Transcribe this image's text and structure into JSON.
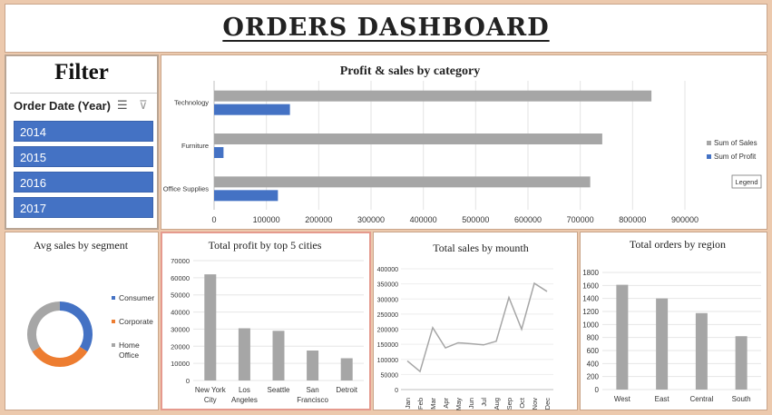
{
  "dashboard": {
    "title": "ORDERS DASHBOARD"
  },
  "filter": {
    "heading": "Filter",
    "slicer_title": "Order Date (Year)",
    "items": [
      "2014",
      "2015",
      "2016",
      "2017"
    ],
    "icons": [
      "multi-select-icon",
      "clear-filter-icon"
    ]
  },
  "colors": {
    "gray": "#a6a6a6",
    "blue": "#4472c4",
    "orange": "#ed7d31",
    "frame": "#ecc9ad"
  },
  "chart_data": [
    {
      "id": "category",
      "type": "bar",
      "orientation": "horizontal",
      "title": "Profit & sales by category",
      "categories": [
        "Technology",
        "Furniture",
        "Office Supplies"
      ],
      "series": [
        {
          "name": "Sum of Sales",
          "color": "#a6a6a6",
          "values": [
            836000,
            742000,
            719000
          ]
        },
        {
          "name": "Sum of Profit",
          "color": "#4472c4",
          "values": [
            145000,
            18000,
            122000
          ]
        }
      ],
      "xlim": [
        0,
        900000
      ],
      "xticks": [
        "0",
        "100000",
        "200000",
        "300000",
        "400000",
        "500000",
        "600000",
        "700000",
        "800000",
        "900000"
      ],
      "legend": "right",
      "legend_tooltip": "Legend"
    },
    {
      "id": "segment",
      "type": "pie",
      "style": "doughnut",
      "title": "Avg sales by segment",
      "labels": [
        "Consumer",
        "Corporate",
        "Home Office"
      ],
      "values": [
        34,
        32,
        34
      ],
      "colors": [
        "#4472c4",
        "#ed7d31",
        "#a6a6a6"
      ],
      "legend": "right"
    },
    {
      "id": "cities",
      "type": "bar",
      "title": "Total profit by top 5 cities",
      "categories": [
        "New York City",
        "Los Angeles",
        "Seattle",
        "San Francisco",
        "Detroit"
      ],
      "values": [
        62000,
        30500,
        29000,
        17500,
        13000
      ],
      "ylim": [
        0,
        70000
      ],
      "yticks": [
        "0",
        "10000",
        "20000",
        "30000",
        "40000",
        "50000",
        "60000",
        "70000"
      ]
    },
    {
      "id": "months",
      "type": "line",
      "title": "Total sales by mounth",
      "categories": [
        "Jan",
        "Feb",
        "Mar",
        "Apr",
        "May",
        "Jun",
        "Jul",
        "Aug",
        "Sep",
        "Oct",
        "Nov",
        "Dec"
      ],
      "values": [
        95000,
        60000,
        205000,
        138000,
        155000,
        152000,
        148000,
        160000,
        305000,
        200000,
        352000,
        325000
      ],
      "ylim": [
        0,
        400000
      ],
      "yticks": [
        "0",
        "50000",
        "100000",
        "150000",
        "200000",
        "250000",
        "300000",
        "350000",
        "400000"
      ]
    },
    {
      "id": "regions",
      "type": "bar",
      "title": "Total orders by region",
      "categories": [
        "West",
        "East",
        "Central",
        "South"
      ],
      "values": [
        1610,
        1400,
        1175,
        820
      ],
      "ylim": [
        0,
        1800
      ],
      "yticks": [
        "0",
        "200",
        "400",
        "600",
        "800",
        "1000",
        "1200",
        "1400",
        "1600",
        "1800"
      ]
    }
  ]
}
